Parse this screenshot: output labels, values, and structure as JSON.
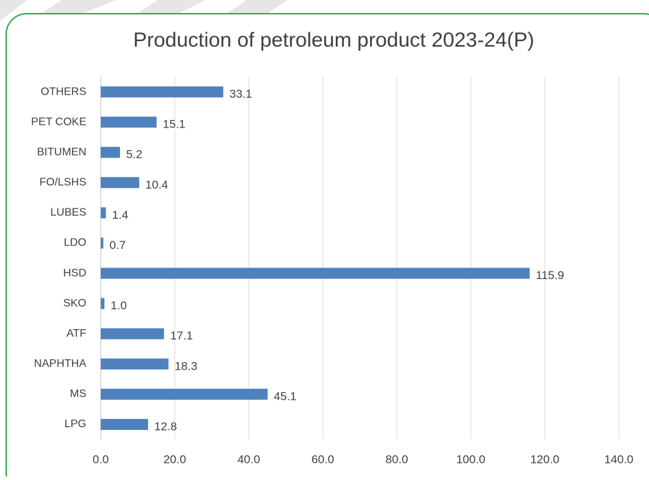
{
  "chart_data": {
    "type": "bar",
    "orientation": "horizontal",
    "title": "Production of petroleum product 2023-24(P)",
    "categories": [
      "LPG",
      "MS",
      "NAPHTHA",
      "ATF",
      "SKO",
      "HSD",
      "LDO",
      "LUBES",
      "FO/LSHS",
      "BITUMEN",
      "PET COKE",
      "OTHERS"
    ],
    "values": [
      12.8,
      45.1,
      18.3,
      17.1,
      1.0,
      115.9,
      0.7,
      1.4,
      10.4,
      5.2,
      15.1,
      33.1
    ],
    "value_labels": [
      "12.8",
      "45.1",
      "18.3",
      "17.1",
      "1.0",
      "115.9",
      "0.7",
      "1.4",
      "10.4",
      "5.2",
      "15.1",
      "33.1"
    ],
    "color": "#4f81bd",
    "xlim": [
      0,
      140
    ],
    "xticks": [
      {
        "value": 0,
        "label": "0.0"
      },
      {
        "value": 20,
        "label": "20.0"
      },
      {
        "value": 40,
        "label": "40.0"
      },
      {
        "value": 60,
        "label": "60.0"
      },
      {
        "value": 80,
        "label": "80.0"
      },
      {
        "value": 100,
        "label": "100.0"
      },
      {
        "value": 120,
        "label": "120.0"
      },
      {
        "value": 140,
        "label": "140.0"
      }
    ],
    "grid": true
  }
}
